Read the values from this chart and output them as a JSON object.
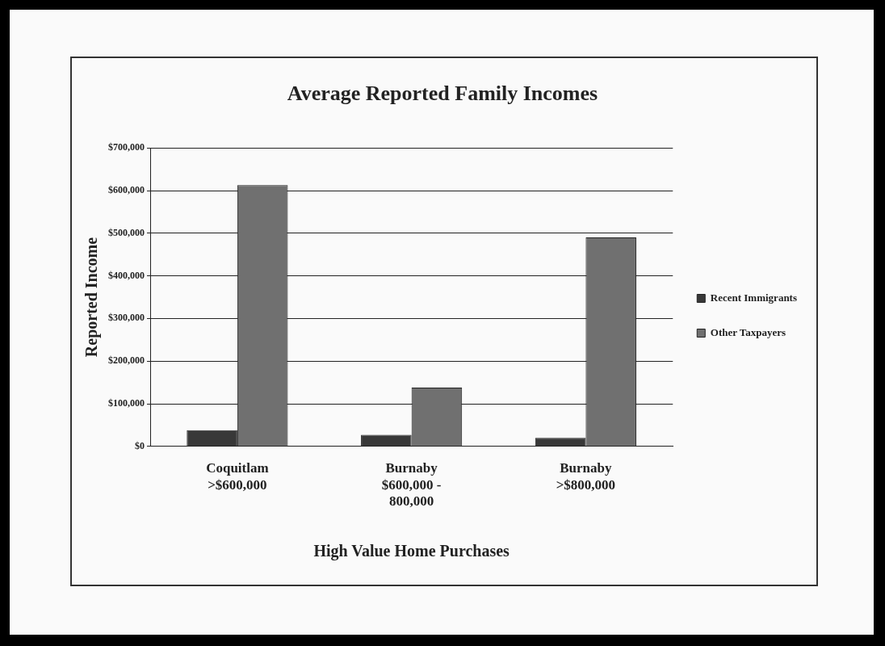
{
  "chart_data": {
    "type": "bar",
    "title": "Average Reported Family Incomes",
    "xlabel": "High Value Home Purchases",
    "ylabel": "Reported Income",
    "categories": [
      "Coquitlam\n>$600,000",
      "Burnaby\n$600,000 -\n800,000",
      "Burnaby\n>$800,000"
    ],
    "series": [
      {
        "name": "Recent Immigrants",
        "color": "#383838",
        "values": [
          38000,
          27000,
          20000
        ]
      },
      {
        "name": "Other Taxpayers",
        "color": "#707070",
        "values": [
          613000,
          138000,
          490000
        ]
      }
    ],
    "ylim": [
      0,
      700000
    ],
    "yticks": [
      {
        "value": 0,
        "label": "$0"
      },
      {
        "value": 100000,
        "label": "$100,000"
      },
      {
        "value": 200000,
        "label": "$200,000"
      },
      {
        "value": 300000,
        "label": "$300,000"
      },
      {
        "value": 400000,
        "label": "$400,000"
      },
      {
        "value": 500000,
        "label": "$500,000"
      },
      {
        "value": 600000,
        "label": "$600,000"
      },
      {
        "value": 700000,
        "label": "$700,000"
      }
    ],
    "grid": "y",
    "legend": "right"
  }
}
